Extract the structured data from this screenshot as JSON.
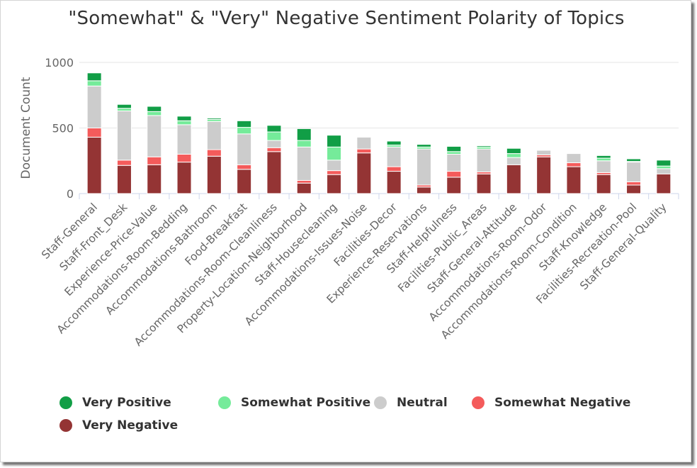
{
  "chart_data": {
    "type": "bar",
    "stacked": true,
    "title": "\"Somewhat\" & \"Very\" Negative Sentiment Polarity of Topics",
    "ylabel": "Document Count",
    "xlabel": "",
    "ylim": [
      0,
      1000
    ],
    "yticks": [
      0,
      500,
      1000
    ],
    "grid": true,
    "legend_position": "bottom",
    "categories": [
      "Staff-General",
      "Staff-Front_Desk",
      "Experience-Price-Value",
      "Accommodations-Room-Bedding",
      "Accommodations-Bathroom",
      "Food-Breakfast",
      "Accommodations-Room-Cleanliness",
      "Property-Location-Neighborhood",
      "Staff-Housecleaning",
      "Accommodations-Issues-Noise",
      "Facilities-Decor",
      "Experience-Reservations",
      "Staff-Helpfulness",
      "Facilities-Public_Areas",
      "Staff-General-Attitude",
      "Accommodations-Room-Odor",
      "Accommodations-Room-Condition",
      "Staff-Knowledge",
      "Facilities-Recreation-Pool",
      "Staff-General-Quality"
    ],
    "series": [
      {
        "name": "Very Negative",
        "color": "#943434",
        "values": [
          430,
          215,
          220,
          240,
          285,
          185,
          320,
          80,
          145,
          310,
          170,
          50,
          125,
          150,
          220,
          280,
          205,
          145,
          65,
          150
        ]
      },
      {
        "name": "Somewhat Negative",
        "color": "#f45b5b",
        "values": [
          70,
          40,
          60,
          60,
          50,
          35,
          30,
          20,
          30,
          30,
          35,
          15,
          45,
          15,
          0,
          15,
          30,
          15,
          25,
          0
        ]
      },
      {
        "name": "Neutral",
        "color": "#cccccc",
        "values": [
          320,
          375,
          315,
          225,
          215,
          235,
          55,
          255,
          80,
          90,
          150,
          275,
          130,
          175,
          55,
          35,
          70,
          90,
          150,
          40
        ]
      },
      {
        "name": "Somewhat Positive",
        "color": "#75eb9a",
        "values": [
          40,
          20,
          30,
          30,
          15,
          50,
          65,
          50,
          100,
          0,
          15,
          15,
          20,
          15,
          30,
          0,
          0,
          20,
          5,
          20
        ]
      },
      {
        "name": "Very Positive",
        "color": "#119e46",
        "values": [
          60,
          30,
          40,
          35,
          10,
          50,
          50,
          90,
          90,
          0,
          30,
          20,
          40,
          10,
          40,
          0,
          0,
          20,
          20,
          45
        ]
      }
    ]
  },
  "legend_order": [
    "Very Positive",
    "Somewhat Positive",
    "Neutral",
    "Somewhat Negative",
    "Very Negative"
  ]
}
